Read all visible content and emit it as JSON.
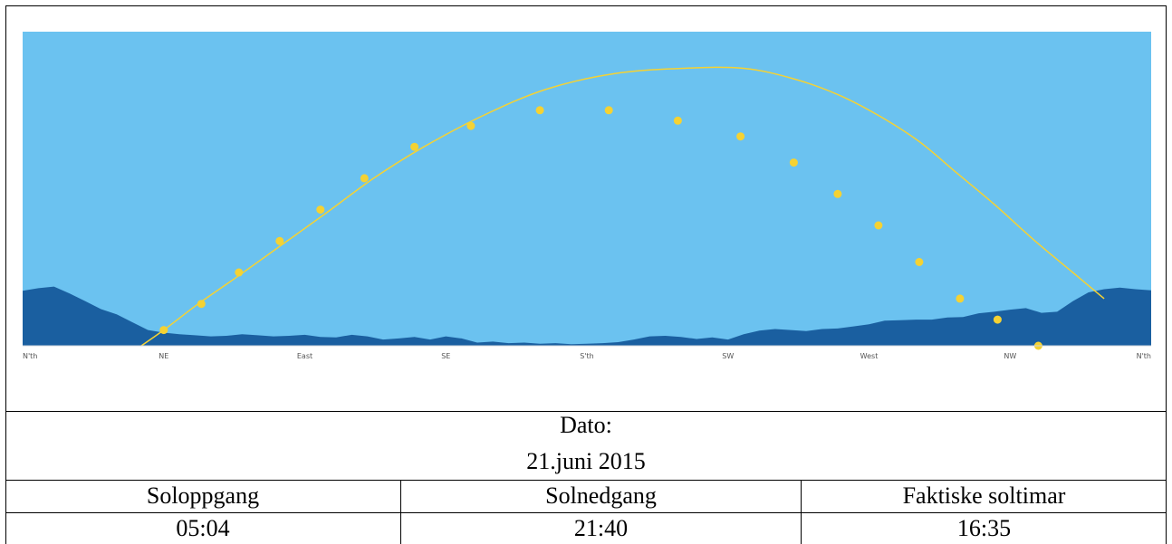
{
  "chart_data": {
    "type": "line",
    "title": "",
    "x_axis": {
      "ticks": [
        {
          "label": "N'th",
          "azimuth": 0
        },
        {
          "label": "NE",
          "azimuth": 45
        },
        {
          "label": "East",
          "azimuth": 90
        },
        {
          "label": "SE",
          "azimuth": 135
        },
        {
          "label": "S'th",
          "azimuth": 180
        },
        {
          "label": "SW",
          "azimuth": 225
        },
        {
          "label": "West",
          "azimuth": 270
        },
        {
          "label": "NW",
          "azimuth": 315
        },
        {
          "label": "N'th",
          "azimuth": 360
        }
      ],
      "range": [
        0,
        360
      ]
    },
    "y_axis": {
      "range": [
        0,
        60
      ],
      "visible": false
    },
    "colors": {
      "sky": "#6BC2F0",
      "horizon": "#1A5FA0",
      "sun_path": "#F5D233",
      "sun_point": "#F5D233"
    },
    "sun_path": {
      "azimuth": [
        33,
        45,
        56,
        68,
        82,
        96,
        112,
        128,
        147,
        167,
        189,
        211,
        230,
        246,
        260,
        273,
        286,
        298,
        310,
        323,
        335,
        345
      ],
      "elevation": [
        -2,
        3,
        8,
        13,
        19,
        25,
        32,
        38,
        44,
        49,
        52,
        53,
        53,
        51,
        48,
        44,
        39,
        33,
        27,
        20,
        14,
        9
      ]
    },
    "sun_points": [
      {
        "azimuth": 45,
        "elevation": 3
      },
      {
        "azimuth": 57,
        "elevation": 8
      },
      {
        "azimuth": 69,
        "elevation": 14
      },
      {
        "azimuth": 82,
        "elevation": 20
      },
      {
        "azimuth": 95,
        "elevation": 26
      },
      {
        "azimuth": 109,
        "elevation": 32
      },
      {
        "azimuth": 125,
        "elevation": 38
      },
      {
        "azimuth": 143,
        "elevation": 42
      },
      {
        "azimuth": 165,
        "elevation": 45
      },
      {
        "azimuth": 187,
        "elevation": 45
      },
      {
        "azimuth": 209,
        "elevation": 43
      },
      {
        "azimuth": 229,
        "elevation": 40
      },
      {
        "azimuth": 246,
        "elevation": 35
      },
      {
        "azimuth": 260,
        "elevation": 29
      },
      {
        "azimuth": 273,
        "elevation": 23
      },
      {
        "azimuth": 286,
        "elevation": 16
      },
      {
        "azimuth": 299,
        "elevation": 9
      },
      {
        "azimuth": 311,
        "elevation": 5
      },
      {
        "azimuth": 324,
        "elevation": 0
      }
    ],
    "horizon": {
      "azimuth": [
        0,
        5,
        10,
        15,
        20,
        25,
        30,
        35,
        40,
        45,
        50,
        55,
        60,
        65,
        70,
        75,
        80,
        85,
        90,
        95,
        100,
        105,
        110,
        115,
        120,
        125,
        130,
        135,
        140,
        145,
        150,
        155,
        160,
        165,
        170,
        175,
        180,
        185,
        190,
        195,
        200,
        205,
        210,
        215,
        220,
        225,
        230,
        235,
        240,
        245,
        250,
        255,
        260,
        265,
        270,
        275,
        280,
        285,
        290,
        295,
        300,
        305,
        310,
        315,
        320,
        325,
        330,
        335,
        340,
        345,
        350,
        355,
        360
      ],
      "elevation": [
        10.5,
        11,
        11.3,
        10,
        8.5,
        7,
        6,
        4.5,
        3,
        2.5,
        2.2,
        2,
        1.8,
        1.9,
        2.2,
        2,
        1.8,
        1.9,
        2.1,
        1.7,
        1.6,
        2.1,
        1.8,
        1.2,
        1.4,
        1.7,
        1.2,
        1.8,
        1.4,
        0.6,
        0.8,
        0.5,
        0.6,
        0.4,
        0.5,
        0.3,
        0.4,
        0.5,
        0.7,
        1.2,
        1.8,
        1.9,
        1.7,
        1.3,
        1.6,
        1.2,
        2.2,
        2.9,
        3.2,
        3,
        2.8,
        3.2,
        3.3,
        3.7,
        4.1,
        4.8,
        4.9,
        5,
        5,
        5.4,
        5.5,
        6.2,
        6.5,
        6.9,
        7.2,
        6.3,
        6.5,
        8.5,
        10.2,
        10.8,
        11.1,
        10.8,
        10.6
      ]
    }
  },
  "info": {
    "date_label": "Dato:",
    "date_value": "21.juni 2015",
    "headers": [
      "Soloppgang",
      "Solnedgang",
      "Faktiske soltimar"
    ],
    "values": [
      "05:04",
      "21:40",
      "16:35"
    ]
  }
}
